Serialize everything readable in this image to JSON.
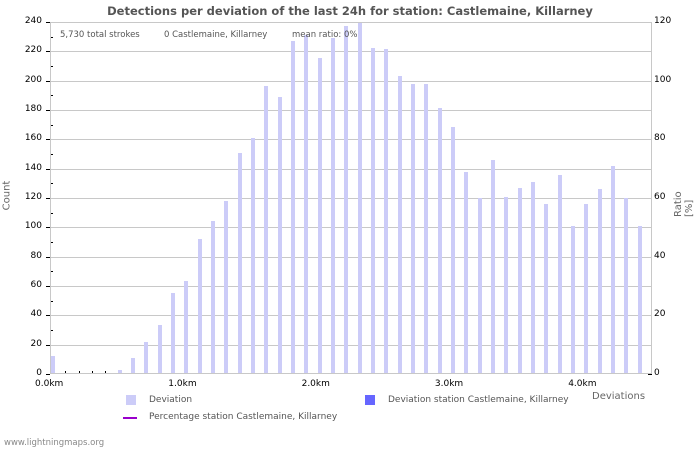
{
  "title": "Detections per deviation of the last 24h for station: Castlemaine, Killarney",
  "info": {
    "total_strokes": "5,730 total strokes",
    "station_strokes": "0 Castlemaine, Killarney",
    "mean_ratio": "mean ratio: 0%"
  },
  "axes": {
    "y_left_title": "Count",
    "y_right_title": "Ratio [%]",
    "x_title": "Deviations",
    "y_left_ticks": [
      "0",
      "20",
      "40",
      "60",
      "80",
      "100",
      "120",
      "140",
      "160",
      "180",
      "200",
      "220",
      "240"
    ],
    "y_right_ticks": [
      "0",
      "20",
      "40",
      "60",
      "80",
      "100",
      "120"
    ],
    "x_ticks": [
      "0.0km",
      "1.0km",
      "2.0km",
      "3.0km",
      "4.0km"
    ]
  },
  "legend": {
    "deviation": "Deviation",
    "deviation_station": "Deviation station Castlemaine, Killarney",
    "percentage_station": "Percentage station Castlemaine, Killarney"
  },
  "colors": {
    "deviation": "#ccccf8",
    "deviation_station": "#6666ff",
    "percentage_line": "#9900cc"
  },
  "footer": "www.lightningmaps.org",
  "chart_data": {
    "type": "bar",
    "title": "Detections per deviation of the last 24h for station: Castlemaine, Killarney",
    "xlabel": "Deviations",
    "ylabel": "Count",
    "ylabel_right": "Ratio [%]",
    "ylim": [
      0,
      240
    ],
    "ylim_right": [
      0,
      120
    ],
    "grid": true,
    "legend_position": "bottom",
    "categories": [
      "0.0",
      "0.1",
      "0.2",
      "0.3",
      "0.4",
      "0.5",
      "0.6",
      "0.7",
      "0.8",
      "0.9",
      "1.0",
      "1.1",
      "1.2",
      "1.3",
      "1.4",
      "1.5",
      "1.6",
      "1.7",
      "1.8",
      "1.9",
      "2.0",
      "2.1",
      "2.2",
      "2.3",
      "2.4",
      "2.5",
      "2.6",
      "2.7",
      "2.8",
      "2.9",
      "3.0",
      "3.1",
      "3.2",
      "3.3",
      "3.4",
      "3.5",
      "3.6",
      "3.7",
      "3.8",
      "3.9",
      "4.0",
      "4.1",
      "4.2",
      "4.3",
      "4.4"
    ],
    "series": [
      {
        "name": "Deviation",
        "values": [
          12,
          0,
          0,
          0,
          0,
          2,
          10,
          21,
          33,
          55,
          63,
          92,
          104,
          118,
          151,
          161,
          197,
          189,
          228,
          232,
          216,
          230,
          238,
          240,
          223,
          222,
          204,
          198,
          198,
          182,
          169,
          138,
          120,
          146,
          121,
          127,
          131,
          116,
          136,
          101,
          116,
          126,
          142,
          120,
          101
        ]
      },
      {
        "name": "Deviation station Castlemaine, Killarney",
        "values": [
          0,
          0,
          0,
          0,
          0,
          0,
          0,
          0,
          0,
          0,
          0,
          0,
          0,
          0,
          0,
          0,
          0,
          0,
          0,
          0,
          0,
          0,
          0,
          0,
          0,
          0,
          0,
          0,
          0,
          0,
          0,
          0,
          0,
          0,
          0,
          0,
          0,
          0,
          0,
          0,
          0,
          0,
          0,
          0,
          0
        ]
      },
      {
        "name": "Percentage station Castlemaine, Killarney",
        "values": [
          0,
          0,
          0,
          0,
          0,
          0,
          0,
          0,
          0,
          0,
          0,
          0,
          0,
          0,
          0,
          0,
          0,
          0,
          0,
          0,
          0,
          0,
          0,
          0,
          0,
          0,
          0,
          0,
          0,
          0,
          0,
          0,
          0,
          0,
          0,
          0,
          0,
          0,
          0,
          0,
          0,
          0,
          0,
          0,
          0
        ]
      }
    ]
  }
}
